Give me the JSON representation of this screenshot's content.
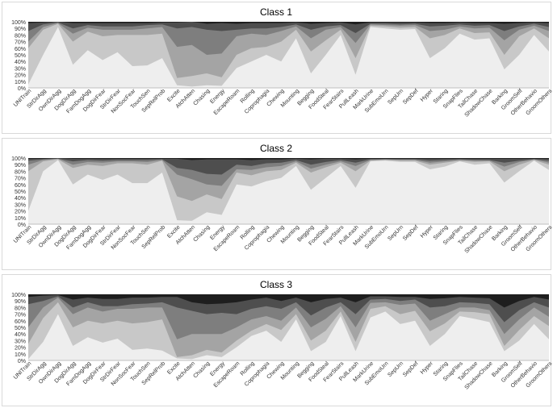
{
  "chart_data": [
    {
      "type": "area",
      "stacked": true,
      "normalized": true,
      "title": "Class 1",
      "ylim": [
        0,
        100
      ],
      "yticks": [
        "0%",
        "10%",
        "20%",
        "30%",
        "40%",
        "50%",
        "60%",
        "70%",
        "80%",
        "90%",
        "100%"
      ],
      "legend": "none",
      "grid": false,
      "colors": [
        "#eeeeee",
        "#c8c8c8",
        "#a4a4a4",
        "#7e7e7e",
        "#4e4e4e",
        "#1e1e1e"
      ],
      "categories": [
        "UNITrain",
        "StrDirAgg",
        "OwnDirAgg",
        "DogDirAgg",
        "FamDogAgg",
        "DogDirFear",
        "StrDirFear",
        "NonSocFear",
        "TouchSen",
        "SepRelProb",
        "Excite",
        "AtchAtten",
        "Chasing",
        "Energy",
        "EscapeRoam",
        "Rolling",
        "Coprophagia",
        "Chewing",
        "Mounting",
        "Begging",
        "FoodSteal",
        "FearStairs",
        "PullLeash",
        "MarkUrine",
        "SubEmoUrn",
        "SepUrn",
        "SepDef",
        "Hyper",
        "Staring",
        "SnapFlies",
        "TailChase",
        "ShadowChase",
        "Barking",
        "GroomSelf",
        "OtherBehavio",
        "GroomOthers"
      ],
      "cumulative": [
        [
          5,
          50,
          92,
          35,
          57,
          42,
          54,
          33,
          34,
          45,
          4,
          2,
          4,
          3,
          30,
          40,
          50,
          40,
          75,
          22,
          50,
          80,
          20,
          92,
          90,
          88,
          89,
          45,
          60,
          82,
          73,
          75,
          28,
          50,
          80,
          55
        ],
        [
          60,
          88,
          97,
          70,
          85,
          78,
          80,
          80,
          80,
          82,
          15,
          18,
          22,
          16,
          50,
          60,
          62,
          70,
          88,
          55,
          72,
          88,
          45,
          94,
          93,
          91,
          92,
          75,
          80,
          90,
          83,
          84,
          50,
          78,
          90,
          75
        ],
        [
          70,
          92,
          98,
          82,
          91,
          88,
          88,
          88,
          90,
          92,
          62,
          65,
          50,
          52,
          78,
          82,
          80,
          86,
          93,
          75,
          88,
          92,
          68,
          96,
          95,
          94,
          95,
          86,
          88,
          93,
          90,
          91,
          72,
          88,
          94,
          86
        ],
        [
          86,
          96,
          99,
          90,
          95,
          93,
          93,
          93,
          95,
          96,
          90,
          92,
          88,
          86,
          88,
          90,
          90,
          92,
          96,
          88,
          93,
          95,
          83,
          97,
          97,
          96,
          97,
          93,
          94,
          96,
          94,
          95,
          86,
          93,
          97,
          92
        ],
        [
          98,
          99,
          100,
          98,
          98,
          98,
          98,
          98,
          98,
          99,
          99,
          100,
          97,
          98,
          97,
          98,
          98,
          98,
          99,
          97,
          98,
          99,
          96,
          99,
          99,
          99,
          99,
          98,
          98,
          99,
          98,
          98,
          97,
          98,
          99,
          98
        ]
      ]
    },
    {
      "type": "area",
      "stacked": true,
      "normalized": true,
      "title": "Class 2",
      "ylim": [
        0,
        100
      ],
      "yticks": [
        "0%",
        "10%",
        "20%",
        "30%",
        "40%",
        "50%",
        "60%",
        "70%",
        "80%",
        "90%",
        "100%"
      ],
      "legend": "none",
      "grid": false,
      "colors": [
        "#eeeeee",
        "#c8c8c8",
        "#a4a4a4",
        "#7e7e7e",
        "#4e4e4e",
        "#1e1e1e"
      ],
      "categories": [
        "UNITrain",
        "StrDirAgg",
        "OwnDirAgg",
        "DogDirAgg",
        "FamDogAgg",
        "DogDirFear",
        "StrDirFear",
        "NonSocFear",
        "TouchSen",
        "SepRelProb",
        "Excite",
        "AtchAtten",
        "Chasing",
        "Energy",
        "EscapeRoam",
        "Rolling",
        "Coprophagia",
        "Chewing",
        "Mounting",
        "Begging",
        "FoodSteal",
        "FearStairs",
        "PullLeash",
        "MarkUrine",
        "SubEmoUrn",
        "SepUrn",
        "SepDef",
        "Hyper",
        "Staring",
        "SnapFlies",
        "TailChase",
        "ShadowChase",
        "Barking",
        "GroomSelf",
        "OtherBehavio",
        "GroomOthers"
      ],
      "cumulative": [
        [
          20,
          80,
          97,
          60,
          75,
          67,
          75,
          62,
          62,
          78,
          6,
          5,
          18,
          14,
          60,
          57,
          65,
          70,
          88,
          52,
          70,
          88,
          55,
          95,
          96,
          94,
          94,
          83,
          87,
          95,
          90,
          92,
          63,
          80,
          96,
          82
        ],
        [
          80,
          95,
          98,
          85,
          90,
          88,
          92,
          92,
          90,
          96,
          42,
          35,
          45,
          38,
          78,
          74,
          80,
          82,
          93,
          78,
          86,
          93,
          80,
          96,
          97,
          96,
          96,
          90,
          93,
          96,
          94,
          95,
          80,
          90,
          97,
          90
        ],
        [
          90,
          97,
          99,
          90,
          94,
          93,
          95,
          95,
          94,
          97,
          75,
          68,
          60,
          58,
          83,
          82,
          86,
          88,
          95,
          84,
          90,
          95,
          88,
          97,
          98,
          97,
          97,
          93,
          95,
          97,
          96,
          96,
          87,
          94,
          98,
          93
        ],
        [
          96,
          98,
          99,
          95,
          97,
          96,
          97,
          97,
          97,
          98,
          85,
          82,
          76,
          75,
          90,
          88,
          92,
          93,
          97,
          90,
          94,
          97,
          93,
          98,
          98,
          98,
          98,
          96,
          97,
          98,
          97,
          97,
          93,
          96,
          98,
          96
        ],
        [
          99,
          99,
          100,
          99,
          99,
          99,
          99,
          99,
          99,
          99,
          99,
          97,
          98,
          98,
          98,
          97,
          98,
          98,
          99,
          98,
          99,
          99,
          98,
          99,
          99,
          99,
          99,
          99,
          99,
          99,
          99,
          99,
          99,
          99,
          99,
          99
        ]
      ]
    },
    {
      "type": "area",
      "stacked": true,
      "normalized": true,
      "title": "Class 3",
      "ylim": [
        0,
        100
      ],
      "yticks": [
        "0%",
        "10%",
        "20%",
        "30%",
        "40%",
        "50%",
        "60%",
        "70%",
        "80%",
        "90%",
        "100%"
      ],
      "legend": "none",
      "grid": false,
      "colors": [
        "#eeeeee",
        "#c8c8c8",
        "#a4a4a4",
        "#7e7e7e",
        "#4e4e4e",
        "#1e1e1e"
      ],
      "categories": [
        "UNITrain",
        "StrDirAgg",
        "OwnDirAgg",
        "DogDirAgg",
        "FamDogAgg",
        "DogDirFear",
        "StrDirFear",
        "NonSocFear",
        "TouchSen",
        "SepRelProb",
        "Excite",
        "AtchAtten",
        "Chasing",
        "Energy",
        "EscapeRoam",
        "Rolling",
        "Coprophagia",
        "Chewing",
        "Mounting",
        "Begging",
        "FoodSteal",
        "FearStairs",
        "PullLeash",
        "MarkUrine",
        "SubEmoUrn",
        "SepUrn",
        "SepDef",
        "Hyper",
        "Staring",
        "SnapFlies",
        "TailChase",
        "ShadowChase",
        "Barking",
        "GroomSelf",
        "OtherBehavio",
        "GroomOthers"
      ],
      "cumulative": [
        [
          2,
          28,
          70,
          22,
          35,
          27,
          33,
          16,
          18,
          15,
          3,
          2,
          8,
          5,
          20,
          37,
          45,
          28,
          62,
          14,
          28,
          67,
          14,
          65,
          74,
          55,
          60,
          22,
          40,
          67,
          63,
          58,
          14,
          30,
          55,
          32
        ],
        [
          25,
          64,
          88,
          50,
          60,
          56,
          60,
          56,
          58,
          62,
          5,
          8,
          16,
          12,
          30,
          45,
          55,
          46,
          70,
          30,
          45,
          74,
          28,
          78,
          82,
          70,
          75,
          44,
          56,
          74,
          73,
          70,
          22,
          46,
          67,
          52
        ],
        [
          50,
          80,
          95,
          70,
          80,
          74,
          78,
          78,
          80,
          80,
          32,
          40,
          40,
          40,
          50,
          62,
          67,
          60,
          80,
          50,
          63,
          82,
          50,
          87,
          88,
          84,
          86,
          60,
          70,
          80,
          80,
          76,
          40,
          62,
          80,
          66
        ],
        [
          85,
          90,
          97,
          80,
          88,
          82,
          82,
          85,
          86,
          88,
          80,
          75,
          70,
          72,
          70,
          78,
          82,
          78,
          88,
          68,
          80,
          88,
          70,
          92,
          93,
          90,
          92,
          80,
          82,
          88,
          87,
          85,
          58,
          76,
          88,
          80
        ],
        [
          96,
          98,
          99,
          92,
          95,
          93,
          93,
          95,
          95,
          96,
          96,
          88,
          85,
          86,
          88,
          92,
          95,
          90,
          95,
          88,
          93,
          95,
          88,
          97,
          97,
          96,
          96,
          93,
          94,
          96,
          95,
          94,
          80,
          90,
          96,
          92
        ]
      ]
    }
  ]
}
